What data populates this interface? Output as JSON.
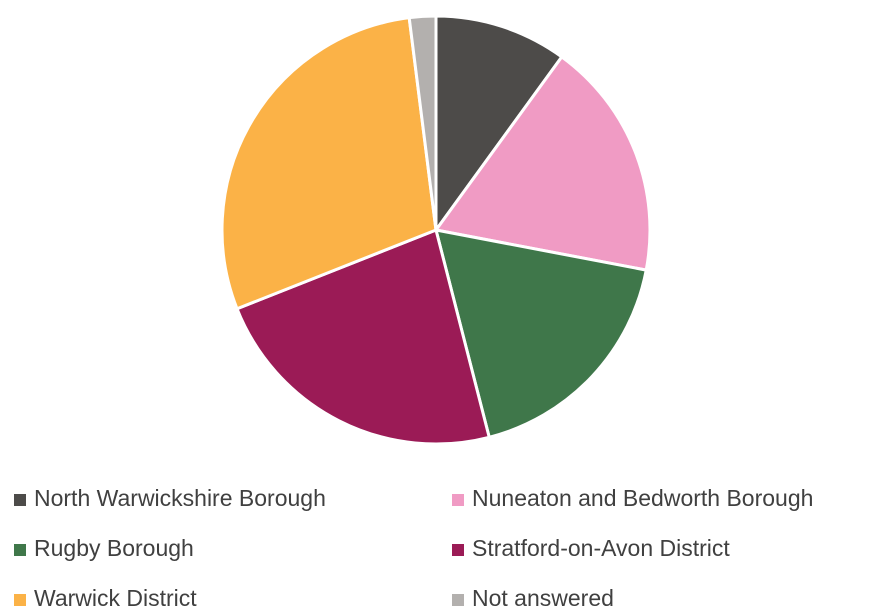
{
  "chart_data": {
    "type": "pie",
    "categories": [
      "North Warwickshire Borough",
      "Nuneaton and Bedworth Borough",
      "Rugby Borough",
      "Stratford-on-Avon District",
      "Warwick District",
      "Not answered"
    ],
    "values": [
      10,
      18,
      18,
      23,
      29,
      2
    ],
    "colors": [
      "#4d4b49",
      "#f09bc4",
      "#3f774a",
      "#9b1b56",
      "#fbb247",
      "#b3b0ae"
    ],
    "legend": "bottom"
  }
}
